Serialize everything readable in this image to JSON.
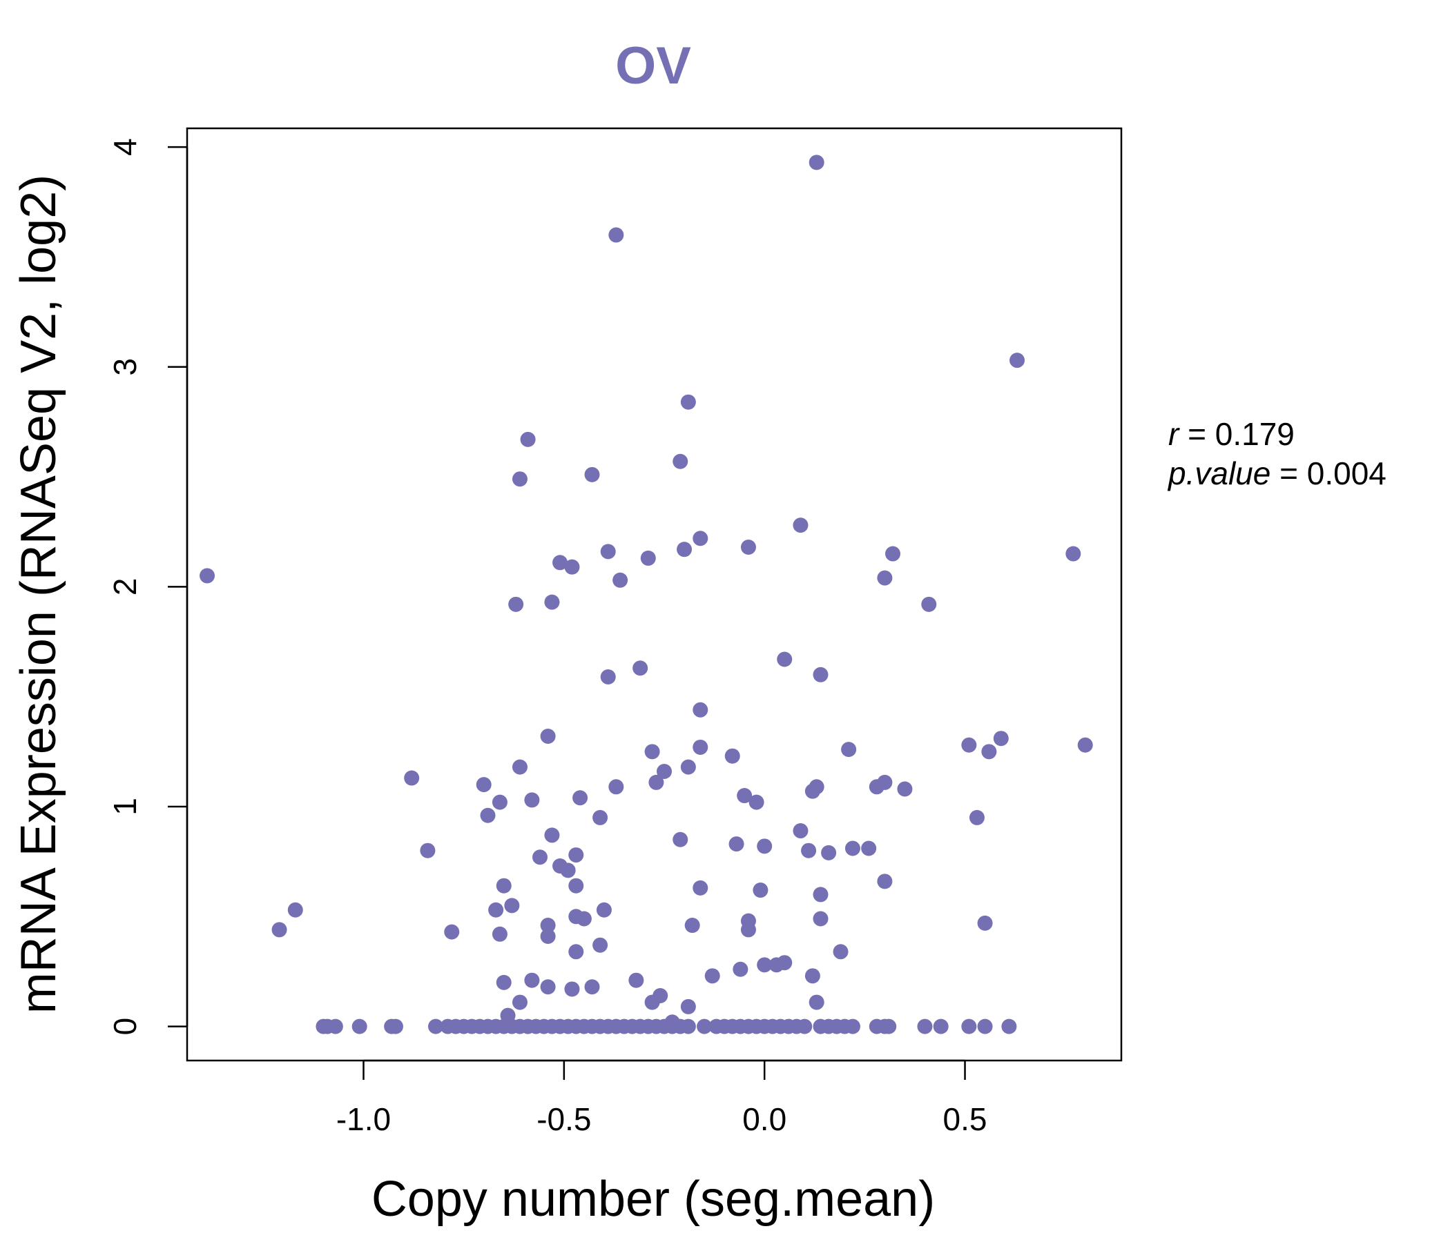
{
  "chart_data": {
    "type": "scatter",
    "title": "OV",
    "xlabel": "Copy number (seg.mean)",
    "ylabel": "mRNA Expression (RNASeq V2, log2)",
    "xlim": [
      -1.44,
      0.89
    ],
    "ylim": [
      -0.155,
      4.085
    ],
    "xticks": [
      -1.0,
      -0.5,
      0.0,
      0.5
    ],
    "xtick_labels": [
      "-1.0",
      "-0.5",
      "0.0",
      "0.5"
    ],
    "yticks": [
      0,
      1,
      2,
      3,
      4
    ],
    "ytick_labels": [
      "0",
      "1",
      "2",
      "3",
      "4"
    ],
    "grid": false,
    "point_color": "#7570B3",
    "stats": {
      "r_label": "r",
      "r_value": "0.179",
      "p_label": "p.value",
      "p_value": "0.004"
    },
    "points": [
      [
        0.13,
        3.93
      ],
      [
        -0.37,
        3.6
      ],
      [
        0.63,
        3.03
      ],
      [
        -0.19,
        2.84
      ],
      [
        -0.59,
        2.67
      ],
      [
        -0.21,
        2.57
      ],
      [
        -0.43,
        2.51
      ],
      [
        -0.61,
        2.49
      ],
      [
        0.09,
        2.28
      ],
      [
        -0.16,
        2.22
      ],
      [
        -0.04,
        2.18
      ],
      [
        -0.2,
        2.17
      ],
      [
        -0.39,
        2.16
      ],
      [
        0.77,
        2.15
      ],
      [
        0.32,
        2.15
      ],
      [
        -0.29,
        2.13
      ],
      [
        -0.51,
        2.11
      ],
      [
        -0.48,
        2.09
      ],
      [
        -1.39,
        2.05
      ],
      [
        0.3,
        2.04
      ],
      [
        -0.36,
        2.03
      ],
      [
        -0.53,
        1.93
      ],
      [
        0.41,
        1.92
      ],
      [
        -0.62,
        1.92
      ],
      [
        0.05,
        1.67
      ],
      [
        -0.31,
        1.63
      ],
      [
        0.14,
        1.6
      ],
      [
        -0.39,
        1.59
      ],
      [
        -0.16,
        1.44
      ],
      [
        -0.54,
        1.32
      ],
      [
        0.59,
        1.31
      ],
      [
        0.8,
        1.28
      ],
      [
        0.51,
        1.28
      ],
      [
        -0.16,
        1.27
      ],
      [
        0.21,
        1.26
      ],
      [
        -0.28,
        1.25
      ],
      [
        0.56,
        1.25
      ],
      [
        -0.08,
        1.23
      ],
      [
        -0.19,
        1.18
      ],
      [
        -0.61,
        1.18
      ],
      [
        -0.25,
        1.16
      ],
      [
        -0.88,
        1.13
      ],
      [
        -0.27,
        1.11
      ],
      [
        0.3,
        1.11
      ],
      [
        -0.7,
        1.1
      ],
      [
        -0.37,
        1.09
      ],
      [
        0.28,
        1.09
      ],
      [
        0.13,
        1.09
      ],
      [
        0.35,
        1.08
      ],
      [
        0.12,
        1.07
      ],
      [
        -0.05,
        1.05
      ],
      [
        -0.46,
        1.04
      ],
      [
        -0.58,
        1.03
      ],
      [
        -0.02,
        1.02
      ],
      [
        -0.66,
        1.02
      ],
      [
        -0.69,
        0.96
      ],
      [
        0.53,
        0.95
      ],
      [
        -0.41,
        0.95
      ],
      [
        0.09,
        0.89
      ],
      [
        -0.53,
        0.87
      ],
      [
        -0.21,
        0.85
      ],
      [
        -0.07,
        0.83
      ],
      [
        0.0,
        0.82
      ],
      [
        0.26,
        0.81
      ],
      [
        0.22,
        0.81
      ],
      [
        0.11,
        0.8
      ],
      [
        -0.84,
        0.8
      ],
      [
        -0.47,
        0.78
      ],
      [
        0.16,
        0.79
      ],
      [
        -0.56,
        0.77
      ],
      [
        -0.51,
        0.73
      ],
      [
        -0.49,
        0.71
      ],
      [
        0.3,
        0.66
      ],
      [
        -0.65,
        0.64
      ],
      [
        -0.47,
        0.64
      ],
      [
        -0.16,
        0.63
      ],
      [
        -0.01,
        0.62
      ],
      [
        0.14,
        0.6
      ],
      [
        -0.63,
        0.55
      ],
      [
        -0.67,
        0.53
      ],
      [
        -1.17,
        0.53
      ],
      [
        -0.4,
        0.53
      ],
      [
        -0.47,
        0.5
      ],
      [
        0.14,
        0.49
      ],
      [
        -0.45,
        0.49
      ],
      [
        -0.04,
        0.48
      ],
      [
        0.55,
        0.47
      ],
      [
        -0.18,
        0.46
      ],
      [
        -0.54,
        0.46
      ],
      [
        -1.21,
        0.44
      ],
      [
        -0.04,
        0.44
      ],
      [
        -0.78,
        0.43
      ],
      [
        -0.66,
        0.42
      ],
      [
        -0.54,
        0.41
      ],
      [
        -0.41,
        0.37
      ],
      [
        -0.47,
        0.34
      ],
      [
        0.19,
        0.34
      ],
      [
        0.05,
        0.29
      ],
      [
        0.03,
        0.28
      ],
      [
        0.0,
        0.28
      ],
      [
        -0.06,
        0.26
      ],
      [
        -0.13,
        0.23
      ],
      [
        0.12,
        0.23
      ],
      [
        -0.32,
        0.21
      ],
      [
        -0.58,
        0.21
      ],
      [
        -0.65,
        0.2
      ],
      [
        -0.43,
        0.18
      ],
      [
        -0.54,
        0.18
      ],
      [
        -0.48,
        0.17
      ],
      [
        -0.26,
        0.14
      ],
      [
        -0.28,
        0.11
      ],
      [
        -0.61,
        0.11
      ],
      [
        0.13,
        0.11
      ],
      [
        -0.19,
        0.09
      ],
      [
        -0.64,
        0.05
      ],
      [
        -0.23,
        0.02
      ],
      [
        -1.1,
        0
      ],
      [
        -1.09,
        0
      ],
      [
        -1.07,
        0
      ],
      [
        -1.01,
        0
      ],
      [
        -0.93,
        0
      ],
      [
        -0.92,
        0
      ],
      [
        -0.82,
        0
      ],
      [
        -0.79,
        0
      ],
      [
        -0.77,
        0
      ],
      [
        -0.75,
        0
      ],
      [
        -0.73,
        0
      ],
      [
        -0.71,
        0
      ],
      [
        -0.69,
        0
      ],
      [
        -0.67,
        0
      ],
      [
        -0.65,
        0
      ],
      [
        -0.63,
        0
      ],
      [
        -0.61,
        0
      ],
      [
        -0.59,
        0
      ],
      [
        -0.57,
        0
      ],
      [
        -0.55,
        0
      ],
      [
        -0.53,
        0
      ],
      [
        -0.51,
        0
      ],
      [
        -0.49,
        0
      ],
      [
        -0.47,
        0
      ],
      [
        -0.45,
        0
      ],
      [
        -0.43,
        0
      ],
      [
        -0.41,
        0
      ],
      [
        -0.39,
        0
      ],
      [
        -0.37,
        0
      ],
      [
        -0.35,
        0
      ],
      [
        -0.33,
        0
      ],
      [
        -0.31,
        0
      ],
      [
        -0.29,
        0
      ],
      [
        -0.27,
        0
      ],
      [
        -0.25,
        0
      ],
      [
        -0.23,
        0
      ],
      [
        -0.21,
        0
      ],
      [
        -0.19,
        0
      ],
      [
        -0.15,
        0
      ],
      [
        -0.12,
        0
      ],
      [
        -0.1,
        0
      ],
      [
        -0.08,
        0
      ],
      [
        -0.06,
        0
      ],
      [
        -0.04,
        0
      ],
      [
        -0.02,
        0
      ],
      [
        0.0,
        0
      ],
      [
        0.02,
        0
      ],
      [
        0.04,
        0
      ],
      [
        0.06,
        0
      ],
      [
        0.08,
        0
      ],
      [
        0.1,
        0
      ],
      [
        0.14,
        0
      ],
      [
        0.16,
        0
      ],
      [
        0.18,
        0
      ],
      [
        0.2,
        0
      ],
      [
        0.22,
        0
      ],
      [
        0.28,
        0
      ],
      [
        0.3,
        0
      ],
      [
        0.31,
        0
      ],
      [
        0.4,
        0
      ],
      [
        0.44,
        0
      ],
      [
        0.51,
        0
      ],
      [
        0.55,
        0
      ],
      [
        0.61,
        0
      ]
    ]
  }
}
